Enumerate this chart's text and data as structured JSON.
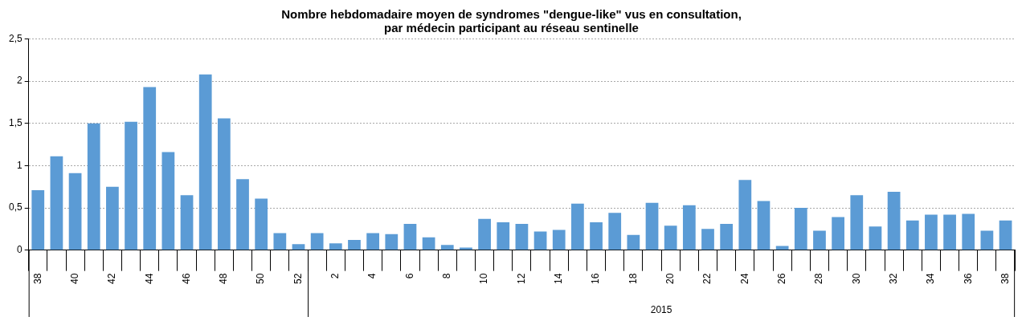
{
  "chart_data": {
    "type": "bar",
    "title": "Nombre hebdomadaire moyen de syndromes \"dengue-like\" vus en consultation,\npar médecin participant au réseau sentinelle",
    "categories": [
      "38",
      null,
      "40",
      null,
      "42",
      null,
      "44",
      null,
      "46",
      null,
      "48",
      null,
      "50",
      null,
      "52",
      null,
      "2",
      null,
      "4",
      null,
      "6",
      null,
      "8",
      null,
      "10",
      null,
      "12",
      null,
      "14",
      null,
      "16",
      null,
      "18",
      null,
      "20",
      null,
      "22",
      null,
      "24",
      null,
      "26",
      null,
      "28",
      null,
      "30",
      null,
      "32",
      null,
      "34",
      null,
      "36",
      null,
      "38"
    ],
    "series": [
      {
        "color": "#5b9bd5",
        "values": [
          0.71,
          1.11,
          0.91,
          1.5,
          0.75,
          1.52,
          1.93,
          1.16,
          0.65,
          2.08,
          1.56,
          0.84,
          0.61,
          0.2,
          0.07,
          0.2,
          0.08,
          0.12,
          0.2,
          0.19,
          0.31,
          0.15,
          0.06,
          0.03,
          0.37,
          0.33,
          0.31,
          0.22,
          0.24,
          0.55,
          0.33,
          0.44,
          0.18,
          0.56,
          0.29,
          0.53,
          0.25,
          0.31,
          0.83,
          0.58,
          0.05,
          0.5,
          0.23,
          0.39,
          0.65,
          0.28,
          0.69,
          0.35,
          0.42,
          0.42,
          0.43,
          0.23,
          0.35
        ]
      }
    ],
    "annotations": [
      "2015"
    ],
    "ylim": [
      0,
      2.5
    ],
    "yticks": [
      0,
      {
        "value": 0.5,
        "label": "0,5"
      },
      1,
      {
        "value": 1.5,
        "label": "1,5"
      },
      2,
      {
        "value": 2.5,
        "label": "2,5"
      }
    ],
    "grid": "y",
    "legend": false
  }
}
